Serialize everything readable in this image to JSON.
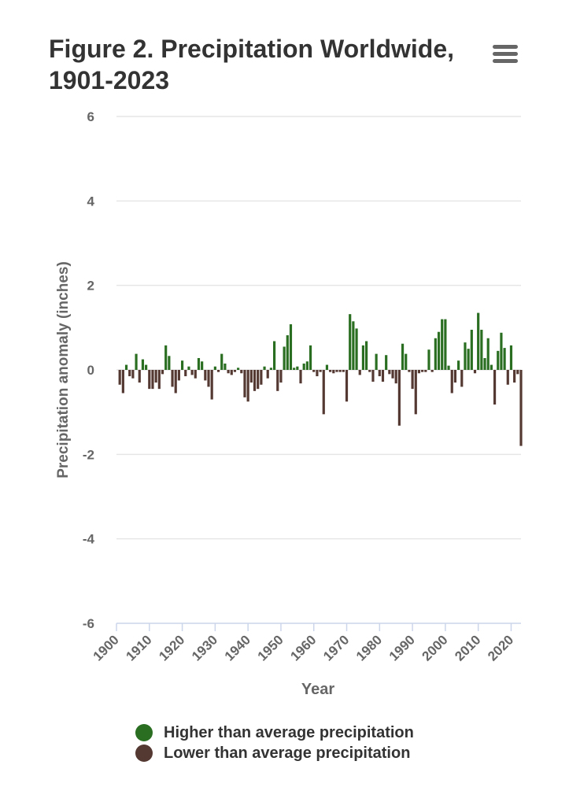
{
  "title": "Figure 2. Precipitation Worldwide, 1901-2023",
  "menu_icon": "hamburger-menu-icon",
  "colors": {
    "positive": "#2a6e22",
    "negative": "#543832",
    "grid": "#e6e6e6",
    "axis": "#ccd6eb",
    "text": "#666666"
  },
  "legend": [
    {
      "label": "Higher than average precipitation",
      "color": "#2a6e22"
    },
    {
      "label": "Lower than average precipitation",
      "color": "#543832"
    }
  ],
  "chart_data": {
    "type": "bar",
    "title": "Figure 2. Precipitation Worldwide, 1901-2023",
    "xlabel": "Year",
    "ylabel": "Precipitation anomaly (inches)",
    "xlim": [
      1900,
      2023
    ],
    "ylim": [
      -6,
      6
    ],
    "xticks": [
      1900,
      1910,
      1920,
      1930,
      1940,
      1950,
      1960,
      1970,
      1980,
      1990,
      2000,
      2010,
      2020
    ],
    "yticks": [
      -6,
      -4,
      -2,
      0,
      2,
      4,
      6
    ],
    "grid": true,
    "legend_position": "bottom",
    "series": [
      {
        "name": "Higher than average precipitation",
        "color": "#2a6e22"
      },
      {
        "name": "Lower than average precipitation",
        "color": "#543832"
      }
    ],
    "x": [
      1901,
      1902,
      1903,
      1904,
      1905,
      1906,
      1907,
      1908,
      1909,
      1910,
      1911,
      1912,
      1913,
      1914,
      1915,
      1916,
      1917,
      1918,
      1919,
      1920,
      1921,
      1922,
      1923,
      1924,
      1925,
      1926,
      1927,
      1928,
      1929,
      1930,
      1931,
      1932,
      1933,
      1934,
      1935,
      1936,
      1937,
      1938,
      1939,
      1940,
      1941,
      1942,
      1943,
      1944,
      1945,
      1946,
      1947,
      1948,
      1949,
      1950,
      1951,
      1952,
      1953,
      1954,
      1955,
      1956,
      1957,
      1958,
      1959,
      1960,
      1961,
      1962,
      1963,
      1964,
      1965,
      1966,
      1967,
      1968,
      1969,
      1970,
      1971,
      1972,
      1973,
      1974,
      1975,
      1976,
      1977,
      1978,
      1979,
      1980,
      1981,
      1982,
      1983,
      1984,
      1985,
      1986,
      1987,
      1988,
      1989,
      1990,
      1991,
      1992,
      1993,
      1994,
      1995,
      1996,
      1997,
      1998,
      1999,
      2000,
      2001,
      2002,
      2003,
      2004,
      2005,
      2006,
      2007,
      2008,
      2009,
      2010,
      2011,
      2012,
      2013,
      2014,
      2015,
      2016,
      2017,
      2018,
      2019,
      2020,
      2021,
      2022,
      2023
    ],
    "values": [
      -0.35,
      -0.55,
      0.12,
      -0.15,
      -0.2,
      0.38,
      -0.3,
      0.25,
      0.12,
      -0.45,
      -0.45,
      -0.3,
      -0.45,
      -0.1,
      0.58,
      0.33,
      -0.4,
      -0.55,
      -0.25,
      0.22,
      -0.15,
      0.08,
      -0.12,
      -0.2,
      0.28,
      0.2,
      -0.25,
      -0.4,
      -0.7,
      0.08,
      -0.05,
      0.38,
      0.15,
      -0.08,
      -0.12,
      -0.05,
      0.05,
      -0.08,
      -0.65,
      -0.75,
      -0.3,
      -0.5,
      -0.45,
      -0.35,
      0.08,
      -0.2,
      0.05,
      0.68,
      -0.5,
      -0.3,
      0.55,
      0.82,
      1.08,
      0.05,
      0.08,
      -0.32,
      0.15,
      0.2,
      0.58,
      -0.05,
      -0.15,
      -0.05,
      -1.05,
      0.12,
      -0.05,
      -0.08,
      -0.05,
      -0.05,
      -0.05,
      -0.75,
      1.32,
      1.15,
      0.98,
      -0.12,
      0.58,
      0.68,
      -0.05,
      -0.28,
      0.38,
      -0.15,
      -0.28,
      0.35,
      -0.1,
      -0.2,
      -0.32,
      -1.32,
      0.62,
      0.38,
      -0.05,
      -0.45,
      -1.05,
      -0.08,
      -0.05,
      -0.05,
      0.48,
      -0.05,
      0.75,
      0.9,
      1.2,
      1.2,
      0.1,
      -0.55,
      -0.3,
      0.22,
      -0.4,
      0.65,
      0.5,
      0.95,
      -0.08,
      1.35,
      0.95,
      0.28,
      0.75,
      0.12,
      -0.82,
      0.45,
      0.88,
      0.52,
      -0.35,
      0.58,
      -0.3,
      -0.1,
      -1.8
    ]
  }
}
